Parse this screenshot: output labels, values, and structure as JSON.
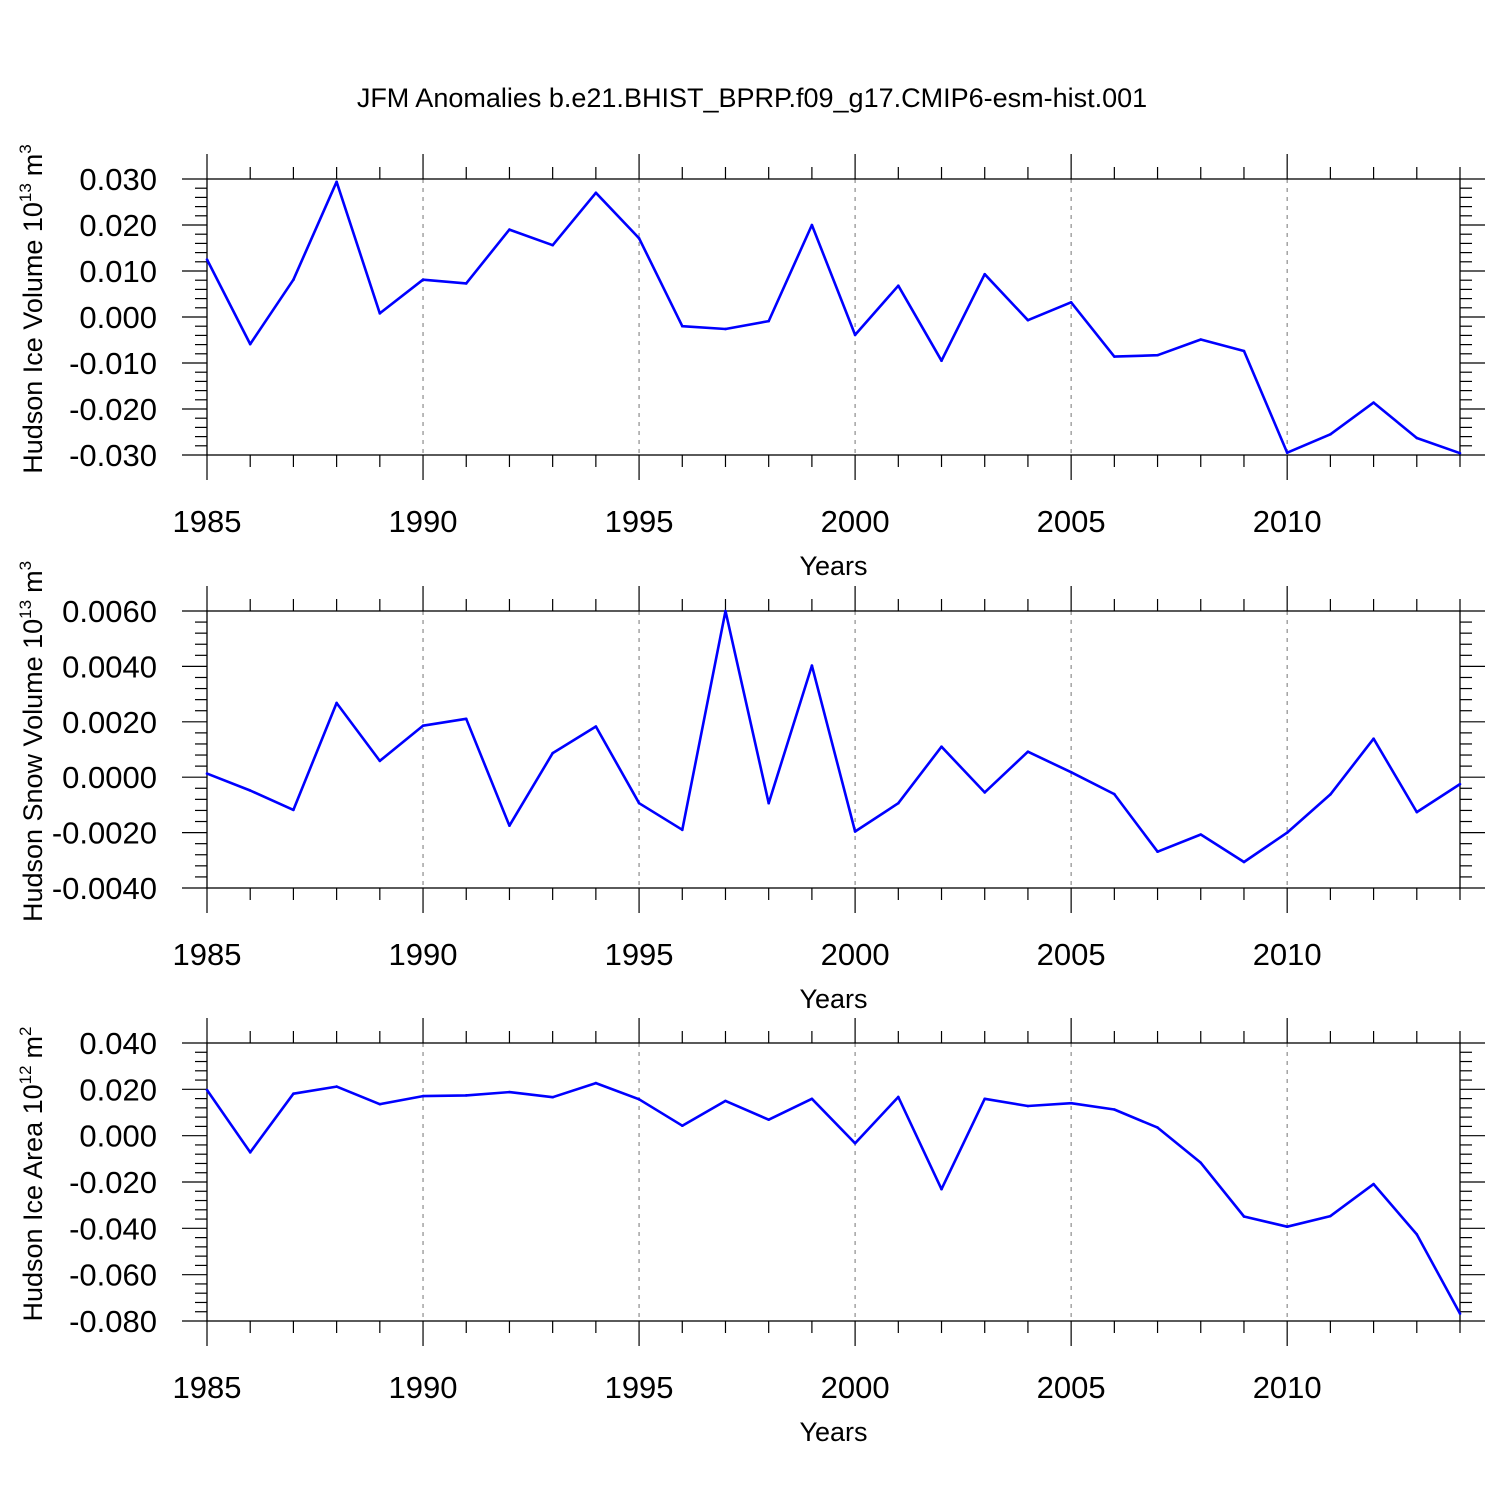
{
  "title": "JFM Anomalies b.e21.BHIST_BPRP.f09_g17.CMIP6-esm-hist.001",
  "colors": {
    "line": "#0000ff",
    "grid": "#8c8c8c",
    "frame": "#000000"
  },
  "chart_data": [
    {
      "type": "line",
      "ylabel": "Hudson Ice Volume 10",
      "ylabel_exp": "13",
      "ylabel_unit": "m",
      "ylabel_unit_exp": "3",
      "xlabel": "Years",
      "xlim": [
        1985,
        2014
      ],
      "ylim": [
        -0.03,
        0.03
      ],
      "x_ticks": [
        "1985",
        "1990",
        "1995",
        "2000",
        "2005",
        "2010"
      ],
      "y_ticks": [
        "-0.030",
        "-0.020",
        "-0.010",
        "0.000",
        "0.010",
        "0.020",
        "0.030"
      ],
      "x_grid": true,
      "x": [
        1985,
        1986,
        1987,
        1988,
        1989,
        1990,
        1991,
        1992,
        1993,
        1994,
        1995,
        1996,
        1997,
        1998,
        1999,
        2000,
        2001,
        2002,
        2003,
        2004,
        2005,
        2006,
        2007,
        2008,
        2009,
        2010,
        2011,
        2012,
        2013,
        2014
      ],
      "values": [
        0.0125,
        -0.0059,
        0.0081,
        0.0294,
        0.0008,
        0.0081,
        0.0073,
        0.019,
        0.0156,
        0.027,
        0.0171,
        -0.002,
        -0.0026,
        -0.0009,
        0.02,
        -0.0039,
        0.0068,
        -0.0095,
        0.0093,
        -0.0007,
        0.0032,
        -0.0086,
        -0.0083,
        -0.0049,
        -0.0074,
        -0.0295,
        -0.0255,
        -0.0186,
        -0.0263,
        -0.0296
      ]
    },
    {
      "type": "line",
      "ylabel": "Hudson Snow Volume 10",
      "ylabel_exp": "13",
      "ylabel_unit": "m",
      "ylabel_unit_exp": "3",
      "xlabel": "Years",
      "xlim": [
        1985,
        2014
      ],
      "ylim": [
        -0.004,
        0.006
      ],
      "x_ticks": [
        "1985",
        "1990",
        "1995",
        "2000",
        "2005",
        "2010"
      ],
      "y_ticks": [
        "-0.0040",
        "-0.0020",
        "0.0000",
        "0.0020",
        "0.0040",
        "0.0060"
      ],
      "x_grid": true,
      "x": [
        1985,
        1986,
        1987,
        1988,
        1989,
        1990,
        1991,
        1992,
        1993,
        1994,
        1995,
        1996,
        1997,
        1998,
        1999,
        2000,
        2001,
        2002,
        2003,
        2004,
        2005,
        2006,
        2007,
        2008,
        2009,
        2010,
        2011,
        2012,
        2013,
        2014
      ],
      "values": [
        0.00013,
        -0.00048,
        -0.00118,
        0.00268,
        0.00059,
        0.00186,
        0.00211,
        -0.00175,
        0.00087,
        0.00183,
        -0.00094,
        -0.0019,
        0.006,
        -0.00094,
        0.00403,
        -0.00196,
        -0.00094,
        0.0011,
        -0.00055,
        0.00092,
        0.00018,
        -0.00061,
        -0.00269,
        -0.00207,
        -0.00306,
        -0.002,
        -0.00062,
        0.00139,
        -0.00126,
        -0.00025
      ]
    },
    {
      "type": "line",
      "ylabel": "Hudson Ice Area 10",
      "ylabel_exp": "12",
      "ylabel_unit": "m",
      "ylabel_unit_exp": "2",
      "xlabel": "Years",
      "xlim": [
        1985,
        2014
      ],
      "ylim": [
        -0.08,
        0.04
      ],
      "x_ticks": [
        "1985",
        "1990",
        "1995",
        "2000",
        "2005",
        "2010"
      ],
      "y_ticks": [
        "-0.080",
        "-0.060",
        "-0.040",
        "-0.020",
        "0.000",
        "0.020",
        "0.040"
      ],
      "x_grid": true,
      "x": [
        1985,
        1986,
        1987,
        1988,
        1989,
        1990,
        1991,
        1992,
        1993,
        1994,
        1995,
        1996,
        1997,
        1998,
        1999,
        2000,
        2001,
        2002,
        2003,
        2004,
        2005,
        2006,
        2007,
        2008,
        2009,
        2010,
        2011,
        2012,
        2013,
        2014
      ],
      "values": [
        0.0197,
        -0.0072,
        0.0181,
        0.0212,
        0.0136,
        0.0171,
        0.0174,
        0.0188,
        0.0166,
        0.0227,
        0.0157,
        0.0043,
        0.015,
        0.0069,
        0.0159,
        -0.0033,
        0.0167,
        -0.0231,
        0.0159,
        0.0128,
        0.014,
        0.0113,
        0.0035,
        -0.0117,
        -0.0349,
        -0.0393,
        -0.0347,
        -0.0209,
        -0.0426,
        -0.0768
      ]
    }
  ]
}
